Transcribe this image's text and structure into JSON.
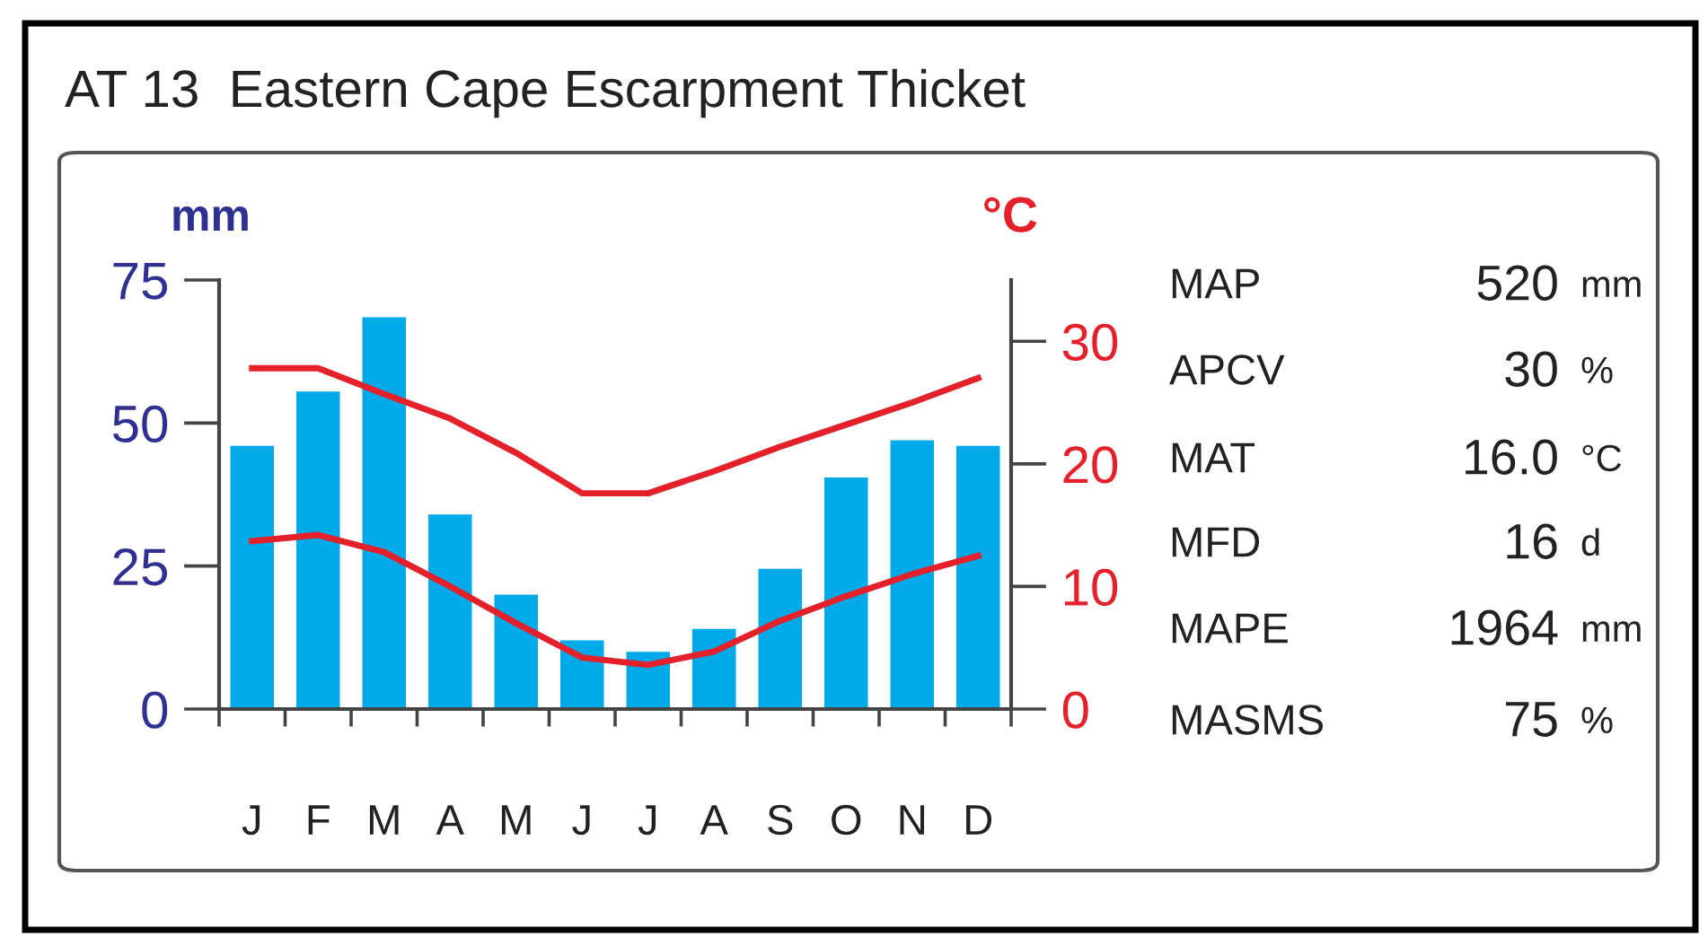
{
  "chart_data": {
    "type": "bar",
    "title": "AT 13  Eastern Cape Escarpment Thicket",
    "ylabel": "mm",
    "y2label": "°C",
    "categories": [
      "J",
      "F",
      "M",
      "A",
      "M",
      "J",
      "J",
      "A",
      "S",
      "O",
      "N",
      "D"
    ],
    "series": [
      {
        "color": "#00a9e8",
        "values": [
          46,
          55.5,
          68.5,
          34,
          20,
          12,
          10,
          14,
          24.5,
          40.5,
          47,
          46
        ]
      },
      {
        "type": "line",
        "axis": "y2",
        "color": "#e4202a",
        "values": [
          27.8,
          27.8,
          25.7,
          23.7,
          20.9,
          17.6,
          17.6,
          19.4,
          21.4,
          23.2,
          25,
          27
        ]
      },
      {
        "type": "line",
        "axis": "y2",
        "color": "#e4202a",
        "values": [
          13.7,
          14.2,
          12.8,
          10,
          7,
          4.2,
          3.6,
          4.7,
          7.2,
          9.2,
          11,
          12.5
        ]
      }
    ],
    "ylim": [
      0,
      75
    ],
    "yticks": [
      0,
      25,
      50,
      75
    ],
    "y2lim": [
      0,
      35
    ],
    "y2ticks": [
      0,
      10,
      20,
      30
    ],
    "grid": false,
    "legend": false,
    "marker": "none",
    "line_style": "solid",
    "annotations": [
      "MAP",
      "520",
      "mm",
      "APCV",
      "30",
      "%",
      "MAT",
      "16.0",
      "°C",
      "MFD",
      "16",
      "d",
      "MAPE",
      "1964",
      "mm",
      "MASMS",
      "75",
      "%"
    ]
  }
}
